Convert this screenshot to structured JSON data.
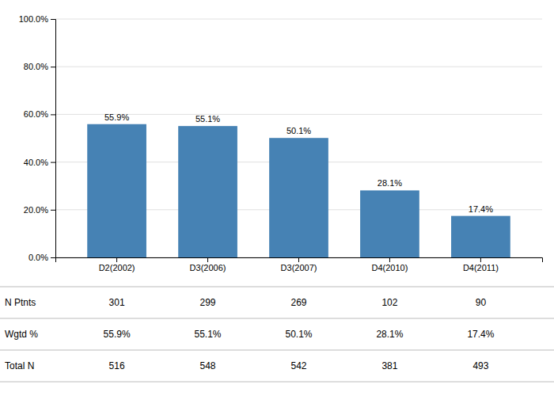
{
  "chart_data": {
    "type": "bar",
    "categories": [
      "D2(2002)",
      "D3(2006)",
      "D3(2007)",
      "D4(2010)",
      "D4(2011)"
    ],
    "values": [
      55.9,
      55.1,
      50.1,
      28.1,
      17.4
    ],
    "value_labels": [
      "55.9%",
      "55.1%",
      "50.1%",
      "28.1%",
      "17.4%"
    ],
    "data_labels": true,
    "ylim": [
      0,
      100
    ],
    "yticks": [
      {
        "value": 0,
        "label": "0.0%"
      },
      {
        "value": 20,
        "label": "20.0%"
      },
      {
        "value": 40,
        "label": "40.0%"
      },
      {
        "value": 60,
        "label": "60.0%"
      },
      {
        "value": 80,
        "label": "80.0%"
      },
      {
        "value": 100,
        "label": "100.0%"
      }
    ],
    "grid": true,
    "table": [
      {
        "label": "N Ptnts",
        "values": [
          301,
          299,
          269,
          102,
          90
        ]
      },
      {
        "label": "Wgtd %",
        "values": [
          55.9,
          55.1,
          50.1,
          28.1,
          17.4
        ],
        "value_labels": [
          "55.9%",
          "55.1%",
          "50.1%",
          "28.1%",
          "17.4%"
        ]
      },
      {
        "label": "Total N",
        "values": [
          516,
          548,
          542,
          381,
          493
        ]
      }
    ]
  }
}
